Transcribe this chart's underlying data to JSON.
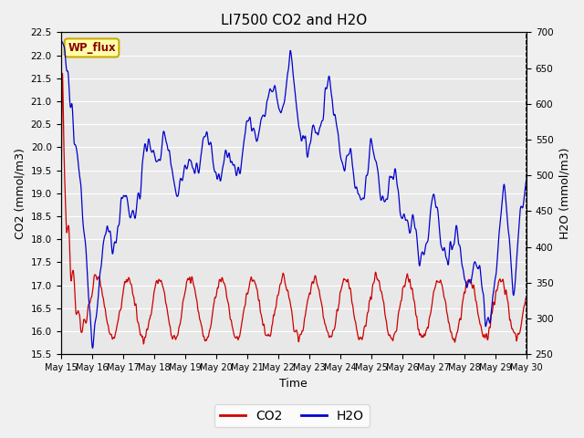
{
  "title": "LI7500 CO2 and H2O",
  "xlabel": "Time",
  "ylabel_left": "CO2 (mmol/m3)",
  "ylabel_right": "H2O (mmol/m3)",
  "ylim_left": [
    15.5,
    22.5
  ],
  "ylim_right": [
    250,
    700
  ],
  "co2_color": "#cc0000",
  "h2o_color": "#0000cc",
  "plot_bg_color": "#e8e8e8",
  "fig_bg_color": "#f0f0f0",
  "annotation_text": "WP_flux",
  "annotation_bg": "#ffffaa",
  "annotation_border": "#ccaa00",
  "legend_co2": "CO2",
  "legend_h2o": "H2O",
  "x_tick_labels": [
    "May 15",
    "May 16",
    "May 17",
    "May 18",
    "May 19",
    "May 20",
    "May 21",
    "May 22",
    "May 23",
    "May 24",
    "May 25",
    "May 26",
    "May 27",
    "May 28",
    "May 29",
    "May 30"
  ],
  "co2_yticks": [
    15.5,
    16.0,
    16.5,
    17.0,
    17.5,
    18.0,
    18.5,
    19.0,
    19.5,
    20.0,
    20.5,
    21.0,
    21.5,
    22.0,
    22.5
  ],
  "h2o_yticks": [
    250,
    300,
    350,
    400,
    450,
    500,
    550,
    600,
    650,
    700
  ],
  "n_points": 2160,
  "days": 15
}
